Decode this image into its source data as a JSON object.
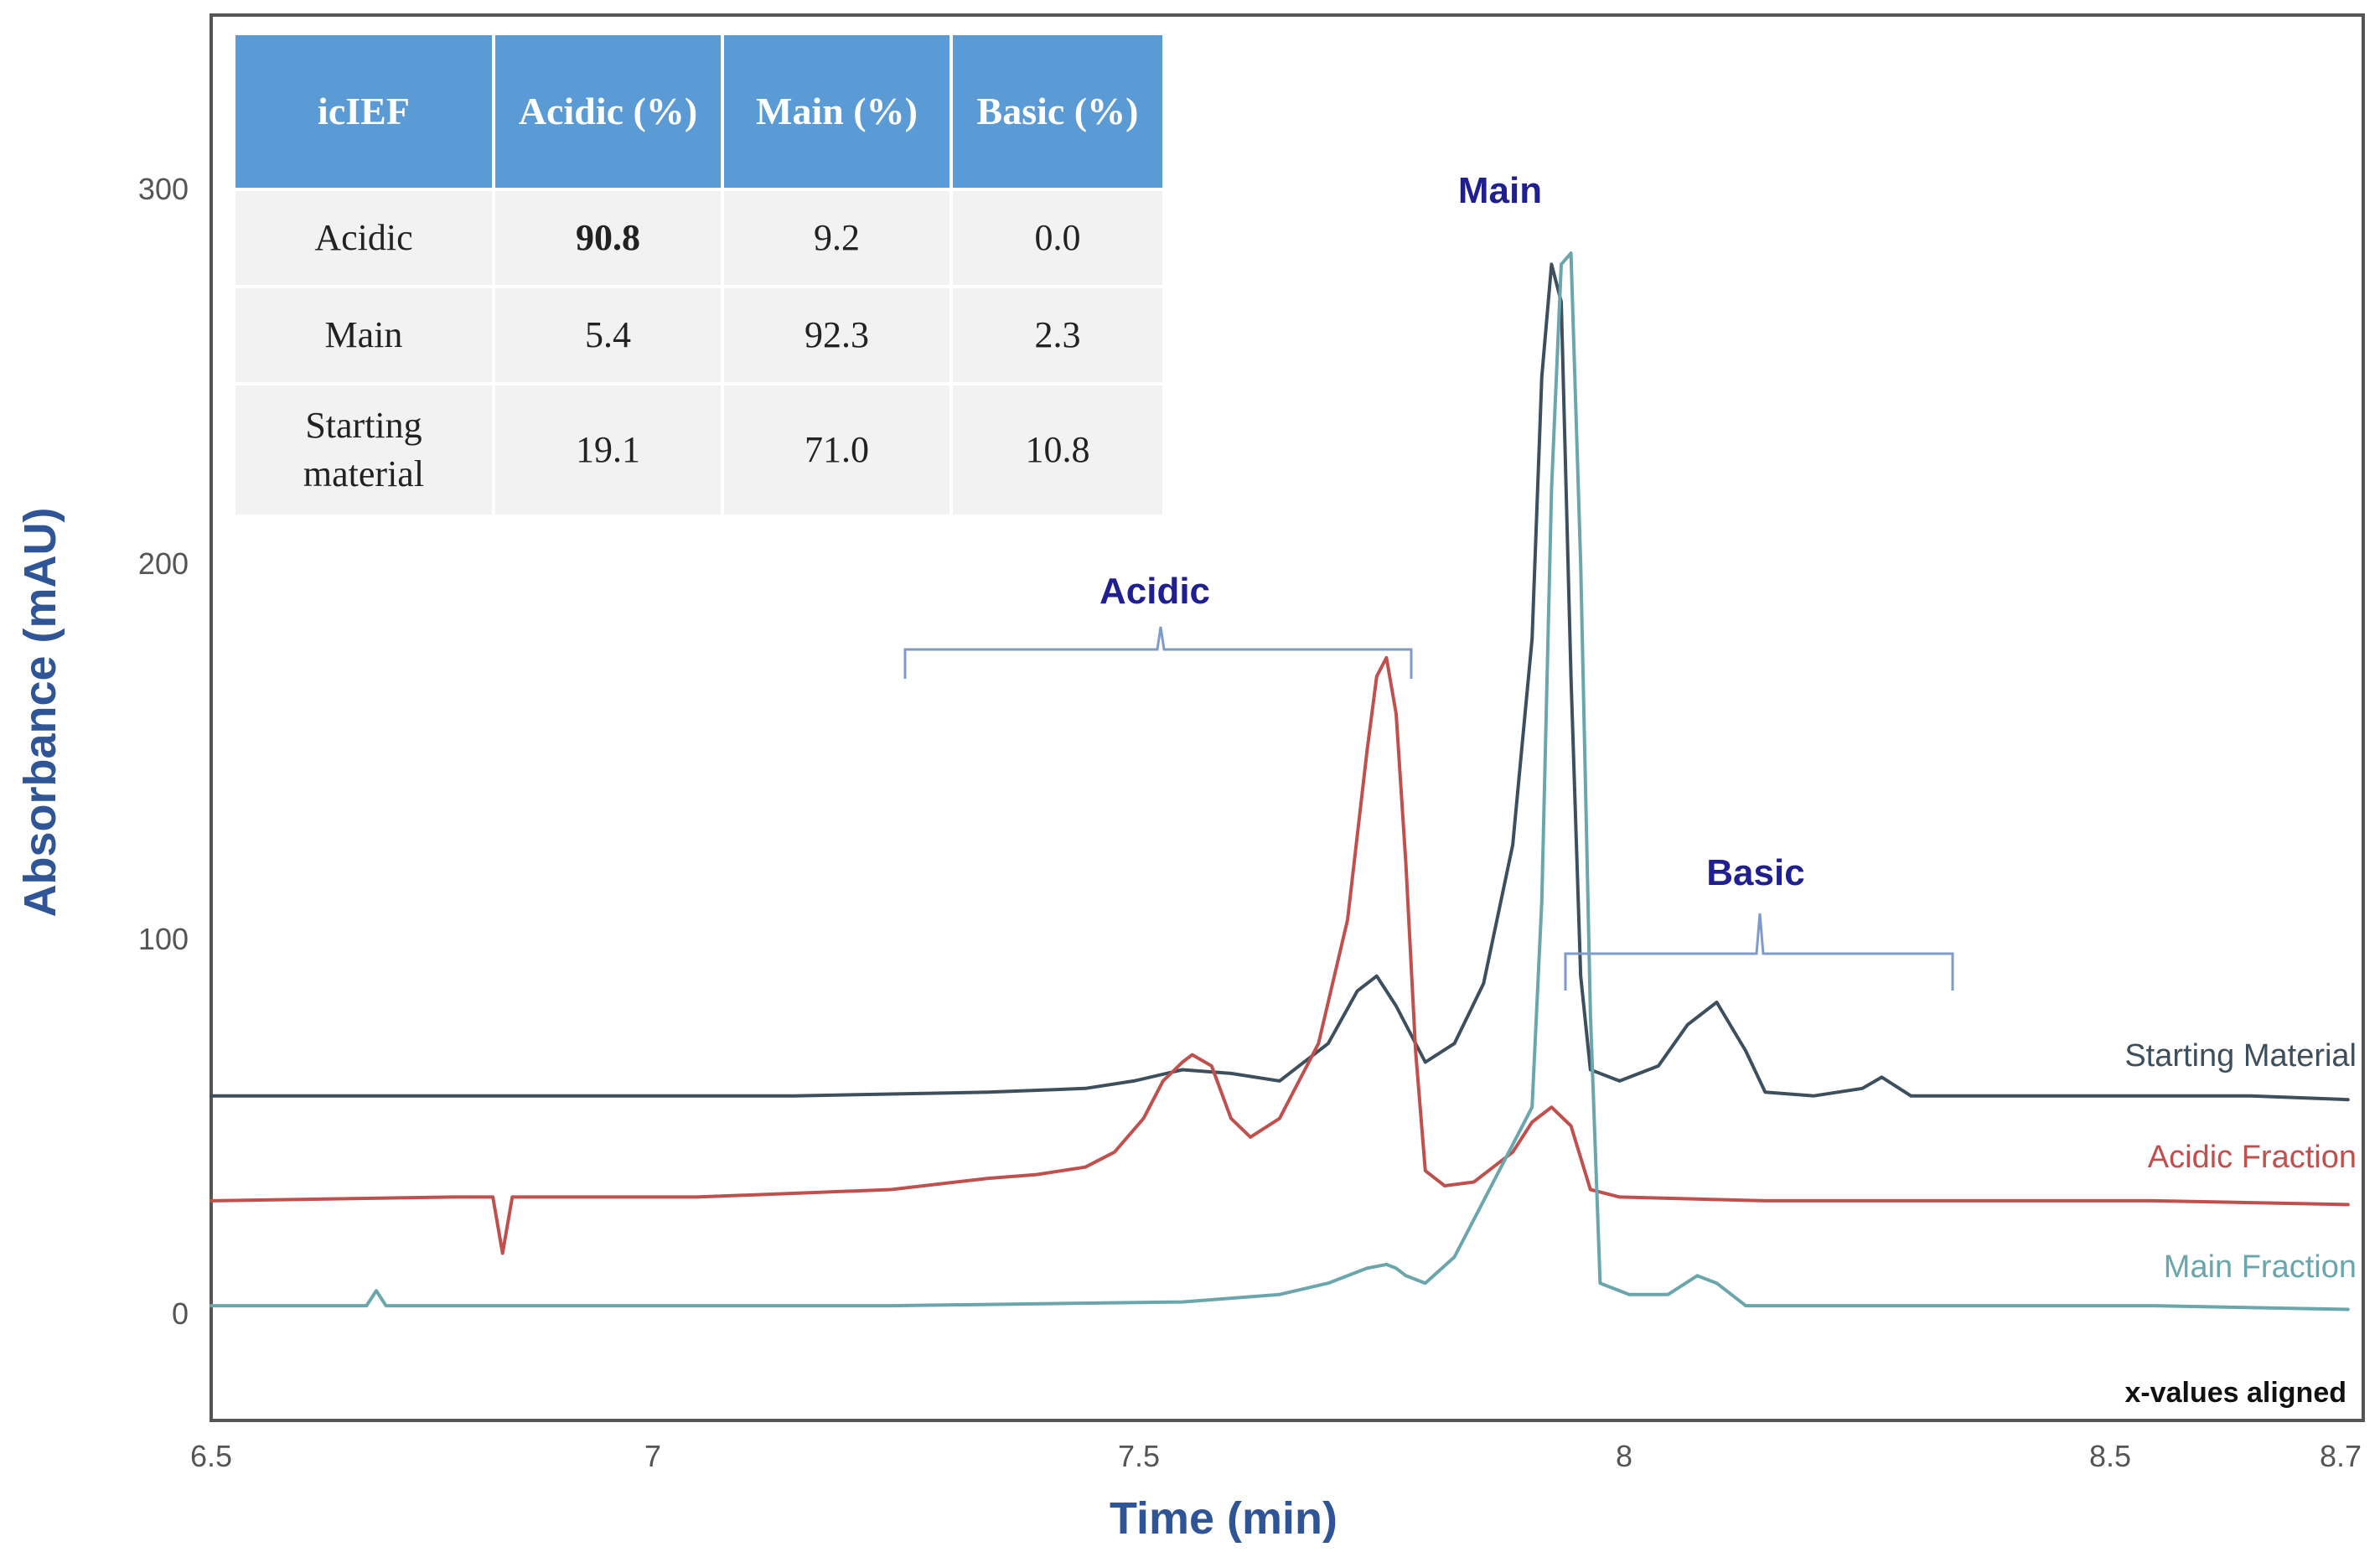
{
  "chart_data": {
    "type": "line",
    "xlabel": "Time (min)",
    "ylabel": "Absorbance (mAU)",
    "xlim": [
      6.5,
      8.7
    ],
    "ylim": [
      -28,
      345
    ],
    "x_ticks": [
      "6.5",
      "7",
      "7.5",
      "8",
      "8.5",
      "8.7"
    ],
    "y_ticks": [
      "300",
      "200",
      "100",
      "0"
    ],
    "grid": false,
    "note": "x-values aligned",
    "series": [
      {
        "name": "Starting Material",
        "color": "#3d4f5c",
        "x": [
          6.5,
          6.7,
          6.9,
          7.1,
          7.3,
          7.4,
          7.45,
          7.5,
          7.55,
          7.6,
          7.65,
          7.68,
          7.7,
          7.72,
          7.75,
          7.78,
          7.81,
          7.84,
          7.86,
          7.87,
          7.88,
          7.89,
          7.9,
          7.91,
          7.92,
          7.95,
          7.99,
          8.02,
          8.05,
          8.08,
          8.1,
          8.15,
          8.2,
          8.22,
          8.25,
          8.4,
          8.6,
          8.7
        ],
        "y": [
          58,
          58,
          58,
          58,
          59,
          60,
          62,
          65,
          64,
          62,
          72,
          86,
          90,
          82,
          67,
          72,
          88,
          125,
          180,
          250,
          280,
          270,
          170,
          90,
          65,
          62,
          66,
          77,
          83,
          70,
          59,
          58,
          60,
          63,
          58,
          58,
          58,
          57
        ]
      },
      {
        "name": "Acidic Fraction",
        "color": "#c0504d",
        "x": [
          6.5,
          6.75,
          6.79,
          6.8,
          6.81,
          6.85,
          7.0,
          7.2,
          7.3,
          7.35,
          7.4,
          7.43,
          7.46,
          7.48,
          7.5,
          7.51,
          7.53,
          7.55,
          7.57,
          7.6,
          7.64,
          7.67,
          7.69,
          7.7,
          7.71,
          7.72,
          7.73,
          7.74,
          7.75,
          7.77,
          7.8,
          7.84,
          7.86,
          7.88,
          7.9,
          7.92,
          7.95,
          8.1,
          8.5,
          8.7
        ],
        "y": [
          30,
          31,
          31,
          16,
          31,
          31,
          31,
          33,
          36,
          37,
          39,
          43,
          52,
          62,
          67,
          69,
          66,
          52,
          47,
          52,
          72,
          105,
          150,
          170,
          175,
          160,
          120,
          70,
          38,
          34,
          35,
          43,
          51,
          55,
          50,
          33,
          31,
          30,
          30,
          29
        ]
      },
      {
        "name": "Main Fraction",
        "color": "#6aa6ab",
        "x": [
          6.5,
          6.66,
          6.67,
          6.68,
          6.9,
          7.2,
          7.5,
          7.6,
          7.65,
          7.69,
          7.71,
          7.72,
          7.73,
          7.75,
          7.78,
          7.8,
          7.83,
          7.86,
          7.87,
          7.88,
          7.89,
          7.9,
          7.91,
          7.92,
          7.93,
          7.96,
          7.98,
          8.0,
          8.03,
          8.05,
          8.08,
          8.2,
          8.5,
          8.7
        ],
        "y": [
          2,
          2,
          6,
          2,
          2,
          2,
          3,
          5,
          8,
          12,
          13,
          12,
          10,
          8,
          15,
          25,
          40,
          55,
          110,
          220,
          280,
          283,
          200,
          80,
          8,
          5,
          5,
          5,
          10,
          8,
          2,
          2,
          2,
          1
        ]
      }
    ],
    "annotations": [
      {
        "text": "Acidic",
        "x_from": 7.27,
        "x_to": 7.79
      },
      {
        "text": "Main",
        "x": 7.89
      },
      {
        "text": "Basic",
        "x_from": 7.95,
        "x_to": 8.35
      }
    ],
    "table": {
      "columns": [
        "icIEF",
        "Acidic (%)",
        "Main (%)",
        "Basic (%)"
      ],
      "rows": [
        [
          "Acidic",
          "90.8",
          "9.2",
          "0.0"
        ],
        [
          "Main",
          "5.4",
          "92.3",
          "2.3"
        ],
        [
          "Starting material",
          "19.1",
          "71.0",
          "10.8"
        ]
      ]
    }
  }
}
